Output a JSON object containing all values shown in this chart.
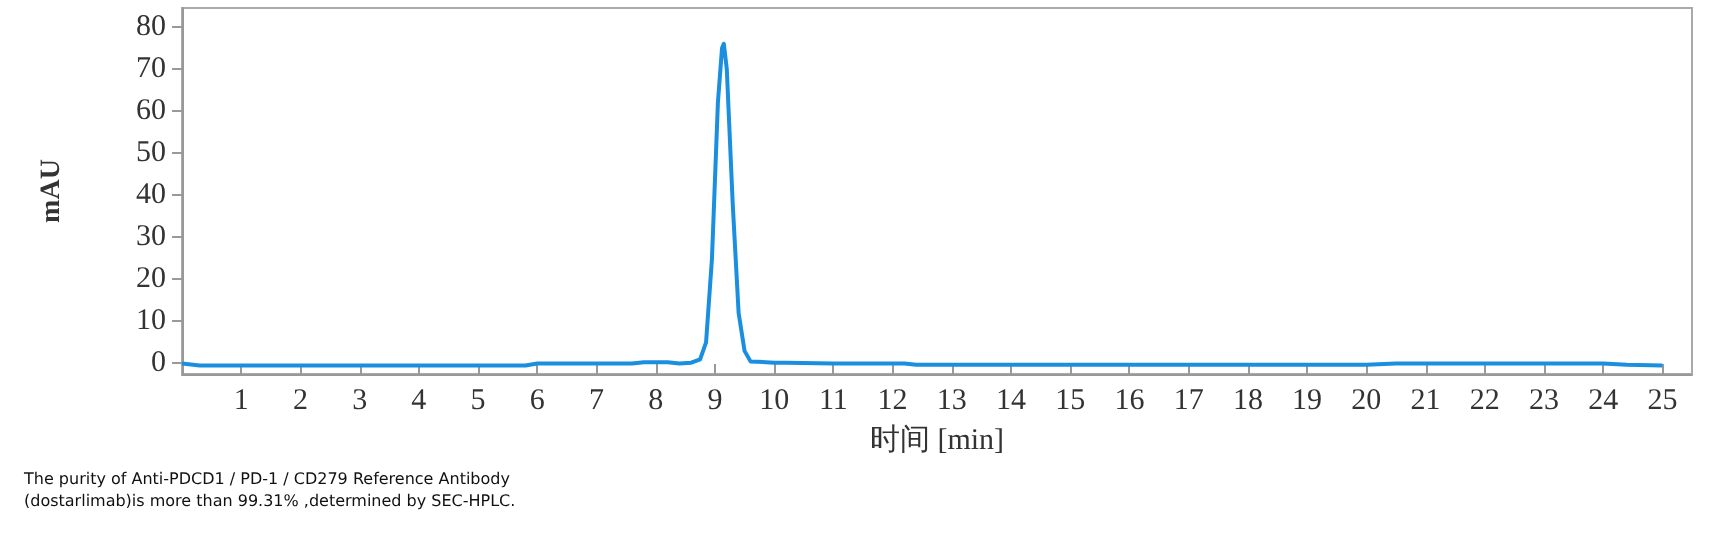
{
  "chart_data": {
    "type": "line",
    "xlabel": "时间 [min]",
    "ylabel": "mAU",
    "x": [
      0,
      0.3,
      1,
      2,
      3,
      4,
      5,
      5.8,
      6,
      7,
      7.6,
      7.8,
      8.2,
      8.4,
      8.6,
      8.75,
      8.85,
      8.95,
      9.05,
      9.12,
      9.15,
      9.2,
      9.3,
      9.4,
      9.5,
      9.6,
      10,
      10.2,
      11,
      12.2,
      12.4,
      13,
      15,
      17,
      19,
      20,
      20.5,
      21,
      22,
      23,
      24,
      24.4,
      25
    ],
    "series": [
      {
        "color": "#1a8fe0",
        "values": [
          0,
          -0.5,
          -0.5,
          -0.5,
          -0.5,
          -0.5,
          -0.5,
          -0.5,
          0,
          0,
          0,
          0.3,
          0.3,
          0,
          0.2,
          1,
          5,
          25,
          62,
          75,
          76,
          70,
          38,
          12,
          3,
          0.5,
          0.2,
          0.2,
          0,
          0,
          -0.3,
          -0.3,
          -0.3,
          -0.3,
          -0.3,
          -0.3,
          0,
          0,
          0,
          0,
          0,
          -0.3,
          -0.5
        ]
      }
    ],
    "xlim": [
      0,
      25.5
    ],
    "xticks": [
      1,
      2,
      3,
      4,
      5,
      6,
      7,
      8,
      9,
      10,
      11,
      12,
      13,
      14,
      15,
      16,
      17,
      18,
      19,
      20,
      21,
      22,
      23,
      24,
      25
    ],
    "ylim": [
      -2.5,
      84.5
    ],
    "yticks": [
      0,
      10,
      20,
      30,
      40,
      50,
      60,
      70,
      80
    ],
    "grid": false,
    "marker": "none",
    "line_style": "solid",
    "annotations": [
      "The purity of Anti-PDCD1 / PD-1 / CD279 Reference Antibody\n(dostarlimab)is more than 99.31% ,determined by SEC-HPLC."
    ]
  }
}
